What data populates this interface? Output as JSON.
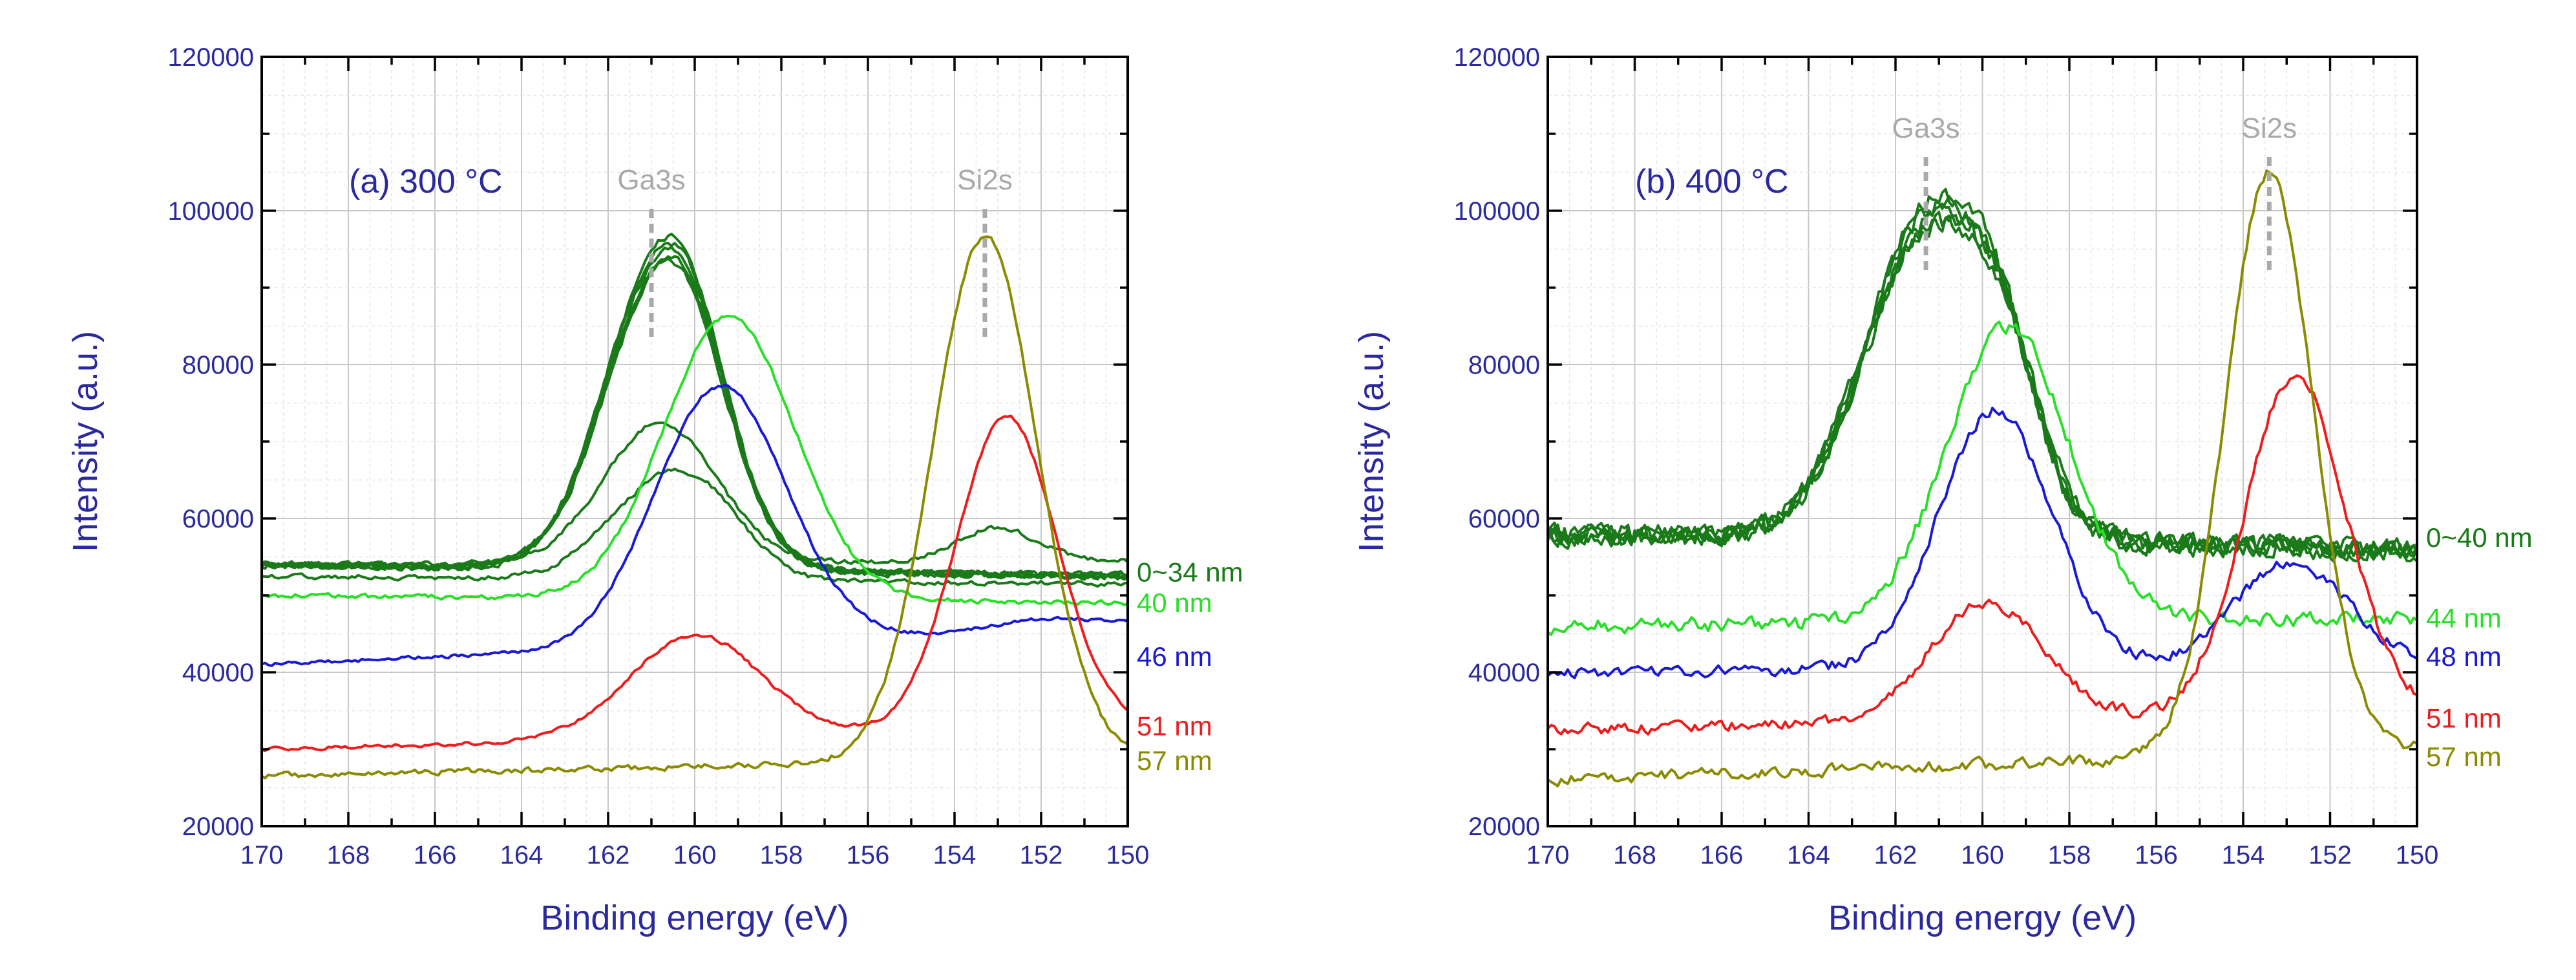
{
  "chart_data": [
    {
      "type": "line",
      "title": "(a) 300 °C",
      "xlabel": "Binding energy (eV)",
      "ylabel": "Intensity (a.u.)",
      "xlim": [
        170,
        150
      ],
      "ylim": [
        20000,
        120000
      ],
      "x_ticks": [
        170,
        168,
        166,
        164,
        162,
        160,
        158,
        156,
        154,
        152,
        150
      ],
      "y_ticks": [
        20000,
        40000,
        60000,
        80000,
        100000,
        120000
      ],
      "grid": true,
      "peak_markers": [
        {
          "label": "Ga3s",
          "x": 161.0
        },
        {
          "label": "Si2s",
          "x": 153.3
        }
      ],
      "series": [
        {
          "name": "0~34 nm",
          "color": "#1a7a1a",
          "base": 54000,
          "end": 52500,
          "noise": 700,
          "copies": 5,
          "peaks": [
            {
              "c": 160.8,
              "a": 38000,
              "w": 1.3
            },
            {
              "c": 159.9,
              "a": 6000,
              "w": 0.8
            }
          ],
          "label_y": 53000
        },
        {
          "name": "",
          "color": "#1a7a1a",
          "base": 54000,
          "end": 54500,
          "noise": 500,
          "copies": 1,
          "peaks": [
            {
              "c": 160.8,
              "a": 19000,
              "w": 1.3
            },
            {
              "c": 153.0,
              "a": 4500,
              "w": 0.9
            }
          ],
          "label_y": null
        },
        {
          "name": "",
          "color": "#1a7a1a",
          "base": 52500,
          "end": 51500,
          "noise": 500,
          "copies": 1,
          "peaks": [
            {
              "c": 160.7,
              "a": 13000,
              "w": 1.3
            },
            {
              "c": 159.5,
              "a": 3500,
              "w": 0.9
            }
          ],
          "label_y": null
        },
        {
          "name": "40 nm",
          "color": "#28e028",
          "base": 50000,
          "end": 49000,
          "noise": 500,
          "copies": 1,
          "peaks": [
            {
              "c": 159.2,
              "a": 38500,
              "w": 1.5
            }
          ],
          "label_y": 49000
        },
        {
          "name": "46 nm",
          "color": "#1a1ad6",
          "base": 41000,
          "end": 46000,
          "noise": 400,
          "copies": 1,
          "peaks": [
            {
              "c": 159.4,
              "a": 35000,
              "w": 1.5
            },
            {
              "c": 151.8,
              "a": 1500,
              "w": 1.2
            }
          ],
          "label_y": 42000
        },
        {
          "name": "51 nm",
          "color": "#ee1c1c",
          "base": 30000,
          "end": 33000,
          "noise": 400,
          "copies": 1,
          "peaks": [
            {
              "c": 160.0,
              "a": 14000,
              "w": 1.5
            },
            {
              "c": 152.8,
              "a": 42500,
              "w": 1.15
            }
          ],
          "label_y": 33000
        },
        {
          "name": "57 nm",
          "color": "#8b8b00",
          "base": 26500,
          "end": 29000,
          "noise": 600,
          "copies": 1,
          "peaks": [
            {
              "c": 153.3,
              "a": 71000,
              "w": 1.2
            }
          ],
          "label_y": 28500
        }
      ]
    },
    {
      "type": "line",
      "title": "(b) 400 °C",
      "xlabel": "Binding energy (eV)",
      "ylabel": "Intensity (a.u.)",
      "xlim": [
        170,
        150
      ],
      "ylim": [
        20000,
        120000
      ],
      "x_ticks": [
        170,
        168,
        166,
        164,
        162,
        160,
        158,
        156,
        154,
        152,
        150
      ],
      "y_ticks": [
        20000,
        40000,
        60000,
        80000,
        100000,
        120000
      ],
      "grid": true,
      "peak_markers": [
        {
          "label": "Ga3s",
          "x": 161.3
        },
        {
          "label": "Si2s",
          "x": 153.4
        }
      ],
      "series": [
        {
          "name": "0~40 nm",
          "color": "#1a7a1a",
          "base": 58000,
          "end": 56000,
          "noise": 2200,
          "copies": 5,
          "peaks": [
            {
              "c": 161.2,
              "a": 41000,
              "w": 1.5
            },
            {
              "c": 159.5,
              "a": 12000,
              "w": 0.8
            }
          ],
          "label_y": 57500
        },
        {
          "name": "44 nm",
          "color": "#28e028",
          "base": 46000,
          "end": 47000,
          "noise": 1500,
          "copies": 1,
          "peaks": [
            {
              "c": 159.4,
              "a": 40000,
              "w": 1.4
            }
          ],
          "label_y": 47000
        },
        {
          "name": "48 nm",
          "color": "#1a1ad6",
          "base": 40000,
          "end": 41000,
          "noise": 1200,
          "copies": 1,
          "peaks": [
            {
              "c": 159.7,
              "a": 35000,
              "w": 1.3
            },
            {
              "c": 152.9,
              "a": 14000,
              "w": 1.3
            }
          ],
          "label_y": 42000
        },
        {
          "name": "51 nm",
          "color": "#ee1c1c",
          "base": 32500,
          "end": 35000,
          "noise": 1200,
          "copies": 1,
          "peaks": [
            {
              "c": 159.9,
              "a": 16000,
              "w": 1.3
            },
            {
              "c": 152.8,
              "a": 46000,
              "w": 1.15
            }
          ],
          "label_y": 34000
        },
        {
          "name": "57 nm",
          "color": "#8b8b00",
          "base": 26000,
          "end": 30000,
          "noise": 1200,
          "copies": 1,
          "peaks": [
            {
              "c": 153.4,
              "a": 79000,
              "w": 1.0
            }
          ],
          "label_y": 29000
        }
      ]
    }
  ]
}
